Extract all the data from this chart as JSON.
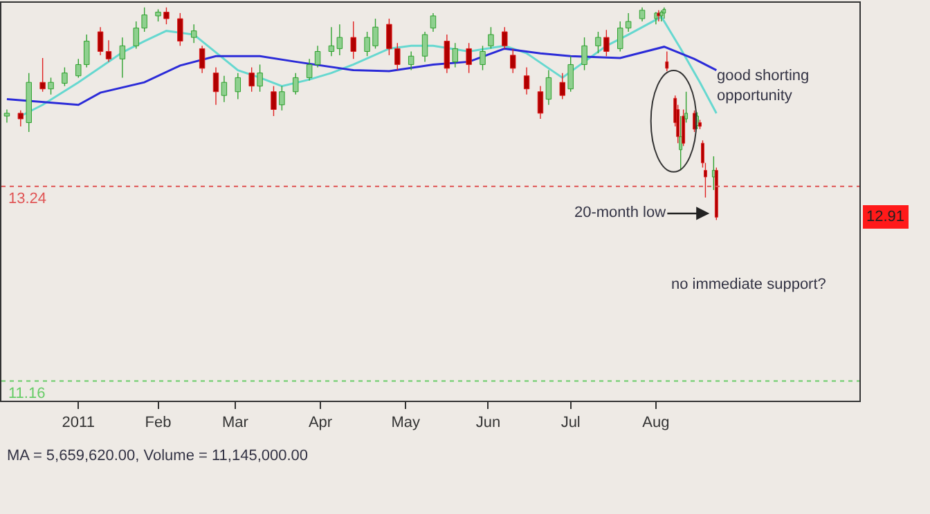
{
  "chart_data": {
    "type": "candlestick",
    "x": [
      "2010-12-08",
      "2010-12-13",
      "2010-12-16",
      "2010-12-21",
      "2010-12-24",
      "2010-12-29",
      "2011-01-03",
      "2011-01-06",
      "2011-01-11",
      "2011-01-14",
      "2011-01-19",
      "2011-01-24",
      "2011-01-27",
      "2011-02-01",
      "2011-02-04",
      "2011-02-09",
      "2011-02-14",
      "2011-02-17",
      "2011-02-22",
      "2011-02-25",
      "2011-03-02",
      "2011-03-07",
      "2011-03-10",
      "2011-03-15",
      "2011-03-18",
      "2011-03-23",
      "2011-03-28",
      "2011-03-31",
      "2011-04-05",
      "2011-04-08",
      "2011-04-13",
      "2011-04-18",
      "2011-04-21",
      "2011-04-26",
      "2011-04-29",
      "2011-05-04",
      "2011-05-09",
      "2011-05-12",
      "2011-05-17",
      "2011-05-20",
      "2011-05-25",
      "2011-05-30",
      "2011-06-02",
      "2011-06-07",
      "2011-06-10",
      "2011-06-15",
      "2011-06-20",
      "2011-06-23",
      "2011-06-28",
      "2011-07-01",
      "2011-07-06",
      "2011-07-11",
      "2011-07-14",
      "2011-07-19",
      "2011-07-22",
      "2011-07-27",
      "2011-08-01",
      "2011-08-02",
      "2011-08-03",
      "2011-08-04",
      "2011-08-05",
      "2011-08-08",
      "2011-08-09",
      "2011-08-10",
      "2011-08-11",
      "2011-08-12",
      "2011-08-15",
      "2011-08-16",
      "2011-08-17",
      "2011-08-18",
      "2011-08-19",
      "2011-08-22",
      "2011-08-23"
    ],
    "ohlc": [
      [
        13.99,
        14.06,
        13.92,
        14.02
      ],
      [
        14.02,
        14.05,
        13.88,
        13.96
      ],
      [
        13.92,
        14.45,
        13.82,
        14.35
      ],
      [
        14.35,
        14.61,
        14.25,
        14.28
      ],
      [
        14.28,
        14.4,
        14.22,
        14.35
      ],
      [
        14.34,
        14.51,
        14.31,
        14.45
      ],
      [
        14.42,
        14.6,
        14.4,
        14.54
      ],
      [
        14.54,
        14.86,
        14.51,
        14.79
      ],
      [
        14.89,
        14.94,
        14.64,
        14.68
      ],
      [
        14.68,
        14.8,
        14.57,
        14.6
      ],
      [
        14.6,
        14.83,
        14.4,
        14.74
      ],
      [
        14.74,
        15.0,
        14.71,
        14.93
      ],
      [
        14.93,
        15.15,
        14.89,
        15.07
      ],
      [
        15.06,
        15.13,
        15.0,
        15.1
      ],
      [
        15.1,
        15.15,
        14.97,
        15.03
      ],
      [
        15.03,
        15.09,
        14.74,
        14.79
      ],
      [
        14.83,
        14.97,
        14.77,
        14.9
      ],
      [
        14.71,
        14.74,
        14.45,
        14.5
      ],
      [
        14.45,
        14.51,
        14.11,
        14.25
      ],
      [
        14.21,
        14.42,
        14.14,
        14.35
      ],
      [
        14.25,
        14.45,
        14.17,
        14.4
      ],
      [
        14.45,
        14.51,
        14.25,
        14.31
      ],
      [
        14.31,
        14.54,
        14.25,
        14.45
      ],
      [
        14.25,
        14.31,
        13.99,
        14.06
      ],
      [
        14.11,
        14.31,
        14.05,
        14.25
      ],
      [
        14.25,
        14.45,
        14.22,
        14.4
      ],
      [
        14.4,
        14.6,
        14.37,
        14.54
      ],
      [
        14.54,
        14.74,
        14.51,
        14.68
      ],
      [
        14.68,
        14.94,
        14.63,
        14.74
      ],
      [
        14.71,
        14.97,
        14.64,
        14.83
      ],
      [
        14.83,
        15.0,
        14.6,
        14.68
      ],
      [
        14.68,
        14.89,
        14.63,
        14.83
      ],
      [
        14.74,
        15.03,
        14.71,
        14.94
      ],
      [
        14.97,
        15.03,
        14.64,
        14.71
      ],
      [
        14.71,
        14.77,
        14.48,
        14.54
      ],
      [
        14.54,
        14.68,
        14.48,
        14.63
      ],
      [
        14.63,
        14.89,
        14.57,
        14.86
      ],
      [
        14.93,
        15.09,
        14.89,
        15.06
      ],
      [
        14.79,
        14.86,
        14.45,
        14.5
      ],
      [
        14.57,
        14.77,
        14.51,
        14.71
      ],
      [
        14.71,
        14.77,
        14.45,
        14.54
      ],
      [
        14.54,
        14.74,
        14.48,
        14.68
      ],
      [
        14.74,
        14.94,
        14.71,
        14.86
      ],
      [
        14.89,
        14.94,
        14.71,
        14.74
      ],
      [
        14.64,
        14.71,
        14.45,
        14.5
      ],
      [
        14.42,
        14.51,
        14.22,
        14.28
      ],
      [
        14.25,
        14.31,
        13.96,
        14.02
      ],
      [
        14.17,
        14.48,
        14.11,
        14.4
      ],
      [
        14.35,
        14.45,
        14.17,
        14.21
      ],
      [
        14.28,
        14.63,
        14.25,
        14.54
      ],
      [
        14.54,
        14.83,
        14.48,
        14.74
      ],
      [
        14.74,
        14.89,
        14.66,
        14.83
      ],
      [
        14.83,
        14.91,
        14.63,
        14.68
      ],
      [
        14.71,
        15.0,
        14.68,
        14.93
      ],
      [
        14.93,
        15.09,
        14.89,
        15.0
      ],
      [
        15.03,
        15.15,
        15.0,
        15.12
      ],
      [
        15.03,
        15.1,
        14.97,
        15.09
      ],
      [
        15.09,
        15.12,
        15.0,
        15.06
      ],
      [
        15.06,
        15.12,
        15.0,
        15.1
      ],
      [
        15.09,
        15.15,
        15.03,
        15.13
      ],
      [
        14.57,
        14.68,
        14.47,
        14.5
      ],
      [
        14.18,
        14.21,
        13.88,
        13.92
      ],
      [
        14.06,
        14.11,
        13.7,
        13.77
      ],
      [
        13.63,
        13.99,
        13.41,
        13.77
      ],
      [
        13.99,
        14.06,
        13.67,
        13.7
      ],
      [
        13.96,
        14.25,
        13.92,
        14.02
      ],
      [
        14.02,
        14.05,
        13.82,
        13.85
      ],
      [
        13.89,
        14.03,
        13.85,
        13.99
      ],
      [
        13.92,
        13.95,
        13.85,
        13.88
      ],
      [
        13.7,
        13.73,
        13.44,
        13.49
      ],
      [
        13.41,
        13.49,
        13.12,
        13.34
      ],
      [
        13.34,
        13.56,
        13.2,
        13.41
      ],
      [
        13.41,
        13.44,
        12.88,
        12.91
      ]
    ],
    "series": [
      {
        "type": "line",
        "color": "#66d8d0",
        "x": [
          "2010-12-13",
          "2010-12-21",
          "2011-01-03",
          "2011-01-11",
          "2011-01-19",
          "2011-01-27",
          "2011-02-04",
          "2011-02-14",
          "2011-02-22",
          "2011-03-02",
          "2011-03-10",
          "2011-03-18",
          "2011-03-28",
          "2011-04-05",
          "2011-04-13",
          "2011-04-26",
          "2011-05-04",
          "2011-05-12",
          "2011-05-25",
          "2011-06-07",
          "2011-06-15",
          "2011-06-23",
          "2011-06-28",
          "2011-07-06",
          "2011-07-14",
          "2011-07-22",
          "2011-08-03",
          "2011-08-10",
          "2011-08-17",
          "2011-08-23"
        ],
        "values": [
          13.99,
          14.11,
          14.35,
          14.51,
          14.67,
          14.79,
          14.9,
          14.86,
          14.67,
          14.48,
          14.4,
          14.31,
          14.38,
          14.45,
          14.54,
          14.71,
          14.74,
          14.74,
          14.68,
          14.74,
          14.66,
          14.5,
          14.4,
          14.57,
          14.74,
          14.86,
          15.05,
          14.71,
          14.35,
          14.02
        ]
      },
      {
        "type": "line",
        "color": "#2b2bd8",
        "x": [
          "2010-12-08",
          "2011-01-03",
          "2011-01-11",
          "2011-01-27",
          "2011-02-09",
          "2011-02-22",
          "2011-03-10",
          "2011-03-23",
          "2011-04-13",
          "2011-04-26",
          "2011-05-12",
          "2011-05-25",
          "2011-06-07",
          "2011-06-20",
          "2011-07-01",
          "2011-07-19",
          "2011-08-04",
          "2011-08-15",
          "2011-08-23"
        ],
        "values": [
          14.17,
          14.11,
          14.24,
          14.35,
          14.53,
          14.63,
          14.63,
          14.57,
          14.48,
          14.47,
          14.54,
          14.57,
          14.71,
          14.66,
          14.63,
          14.61,
          14.73,
          14.6,
          14.48
        ]
      }
    ],
    "xlim": [
      "2010-12-06",
      "2011-10-14"
    ],
    "xticks": [
      {
        "value": "2011-01-03",
        "label": "2011"
      },
      {
        "value": "2011-02-01",
        "label": "Feb"
      },
      {
        "value": "2011-03-01",
        "label": "Mar"
      },
      {
        "value": "2011-04-01",
        "label": "Apr"
      },
      {
        "value": "2011-05-02",
        "label": "May"
      },
      {
        "value": "2011-06-01",
        "label": "Jun"
      },
      {
        "value": "2011-07-01",
        "label": "Jul"
      },
      {
        "value": "2011-08-01",
        "label": "Aug"
      }
    ],
    "ylim": [
      10.95,
      15.2
    ],
    "tick_labels": "x",
    "ref_lines": [
      {
        "axis": "y",
        "value": 13.24,
        "label": "13.24",
        "color": "#e05555",
        "line_style": "dotted"
      },
      {
        "axis": "y",
        "value": 11.16,
        "label": "11.16",
        "color": "#66cc66",
        "line_style": "dotted"
      }
    ],
    "annotations": [
      "good shorting opportunity",
      {
        "text": "20-month low",
        "x": "2011-08-22",
        "y": 12.95
      },
      "no immediate support?",
      {
        "text": "12.91",
        "y": 12.91
      },
      "MA = 5,659,620.00, Volume = 11,145,000.00"
    ]
  }
}
